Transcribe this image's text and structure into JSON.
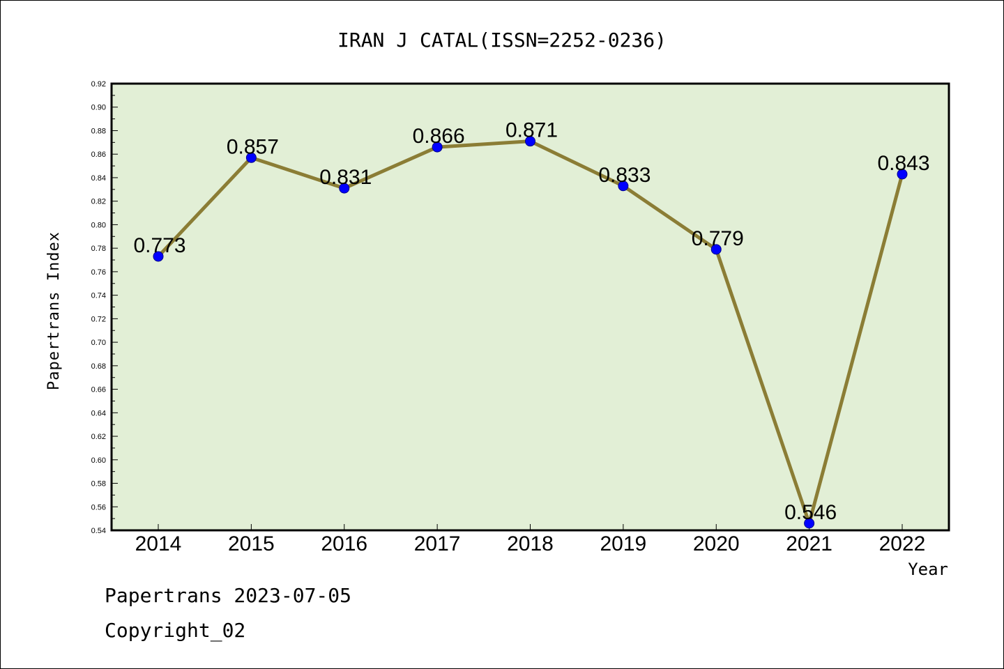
{
  "colors": {
    "plot_background": "#e2efd6",
    "line": "#8b7d35",
    "marker": "#0000ff",
    "marker_edge": "#00008b",
    "axis": "#000000"
  },
  "chart_data": {
    "type": "line",
    "title": "IRAN J CATAL(ISSN=2252-0236)",
    "xlabel": "Year",
    "ylabel": "Papertrans Index",
    "categories": [
      "2014",
      "2015",
      "2016",
      "2017",
      "2018",
      "2019",
      "2020",
      "2021",
      "2022"
    ],
    "series": [
      {
        "values": [
          0.773,
          0.857,
          0.831,
          0.866,
          0.871,
          0.833,
          0.779,
          0.546,
          0.843
        ],
        "data_labels": [
          "0.773",
          "0.857",
          "0.831",
          "0.866",
          "0.871",
          "0.833",
          "0.779",
          "0.546",
          "0.843"
        ]
      }
    ],
    "ylim": [
      0.54,
      0.92
    ],
    "yticks": [
      "0.54",
      "0.56",
      "0.58",
      "0.60",
      "0.62",
      "0.64",
      "0.66",
      "0.68",
      "0.70",
      "0.72",
      "0.74",
      "0.76",
      "0.78",
      "0.80",
      "0.82",
      "0.84",
      "0.86",
      "0.88",
      "0.90",
      "0.92"
    ],
    "grid": false,
    "legend": "none"
  },
  "footer": {
    "line1": "Papertrans 2023-07-05",
    "line2": "Copyright_02"
  }
}
